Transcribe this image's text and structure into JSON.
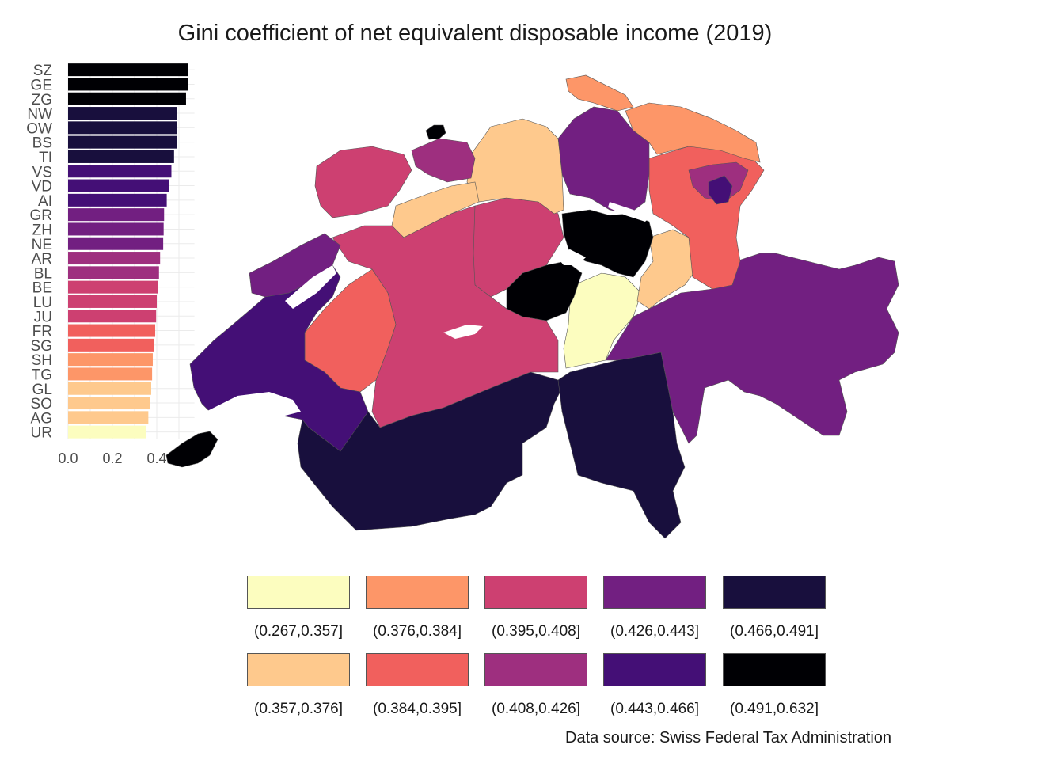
{
  "title": "Gini coefficient of net equivalent disposable income (2019)",
  "source": "Data source: Swiss Federal Tax Administration",
  "chart_data": {
    "type": "bar",
    "orientation": "horizontal",
    "categories": [
      "SZ",
      "GE",
      "ZG",
      "NW",
      "OW",
      "BS",
      "TI",
      "VS",
      "VD",
      "AI",
      "GR",
      "ZH",
      "NE",
      "AR",
      "BL",
      "BE",
      "LU",
      "JU",
      "FR",
      "SG",
      "SH",
      "TG",
      "GL",
      "SO",
      "AG",
      "UR"
    ],
    "values": [
      0.542,
      0.54,
      0.532,
      0.491,
      0.491,
      0.491,
      0.478,
      0.466,
      0.455,
      0.445,
      0.433,
      0.431,
      0.429,
      0.415,
      0.41,
      0.405,
      0.4,
      0.397,
      0.393,
      0.389,
      0.382,
      0.379,
      0.375,
      0.368,
      0.362,
      0.35
    ],
    "xlim": [
      0,
      0.6
    ],
    "xticks": [
      "0.0",
      "0.2",
      "0.4"
    ],
    "xtick_values": [
      0.0,
      0.2,
      0.4
    ],
    "grid": true
  },
  "legend": {
    "bins": [
      {
        "label": "(0.267,0.357]",
        "color": "#fcfdbf"
      },
      {
        "label": "(0.357,0.376]",
        "color": "#fec98d"
      },
      {
        "label": "(0.376,0.384]",
        "color": "#fd9668"
      },
      {
        "label": "(0.384,0.395]",
        "color": "#f1605d"
      },
      {
        "label": "(0.395,0.408]",
        "color": "#cd4071"
      },
      {
        "label": "(0.408,0.426]",
        "color": "#9e2f7f"
      },
      {
        "label": "(0.426,0.443]",
        "color": "#721f81"
      },
      {
        "label": "(0.443,0.466]",
        "color": "#440f76"
      },
      {
        "label": "(0.466,0.491]",
        "color": "#180f3d"
      },
      {
        "label": "(0.491,0.632]",
        "color": "#000004"
      }
    ]
  }
}
